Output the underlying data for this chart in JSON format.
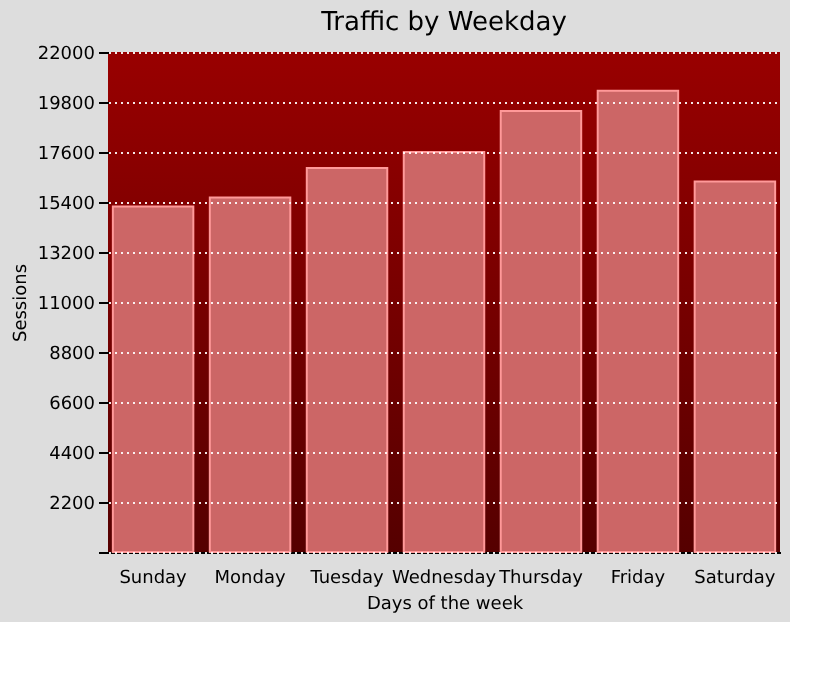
{
  "chart_data": {
    "type": "bar",
    "title": "Traffic by Weekday",
    "xlabel": "Days of the week",
    "ylabel": "Sessions",
    "categories": [
      "Sunday",
      "Monday",
      "Tuesday",
      "Wednesday",
      "Thursday",
      "Friday",
      "Saturday"
    ],
    "values": [
      15200,
      15600,
      16900,
      17600,
      19400,
      20300,
      16300
    ],
    "color": "#cc6666",
    "ylim": [
      0,
      22000
    ],
    "yticks": [
      {
        "value": 0,
        "label": null
      },
      2200,
      4400,
      6600,
      8800,
      11000,
      13200,
      15400,
      17600,
      19800,
      22000
    ],
    "grid": "y"
  }
}
